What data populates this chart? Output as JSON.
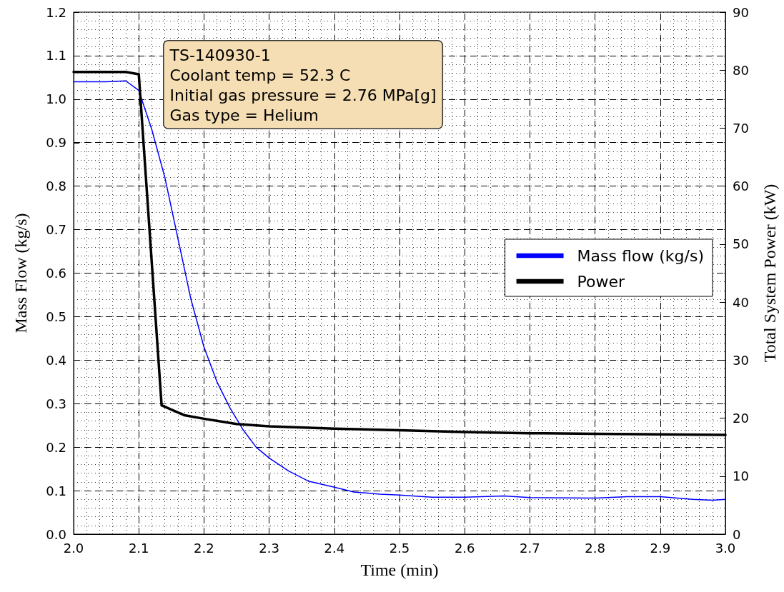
{
  "chart_data": {
    "type": "line",
    "xlabel": "Time (min)",
    "ylabel": "Mass Flow (kg/s)",
    "y2label": "Total System Power (kW)",
    "annotations": [
      "TS-140930-1",
      "Coolant temp = 52.3 C",
      "Initial gas pressure = 2.76 MPa[g]",
      "Gas type = Helium"
    ],
    "xlim": [
      2.0,
      3.0
    ],
    "xticks": [
      {
        "value": 2.0,
        "label": "2.0"
      },
      2.1,
      2.2,
      2.3,
      2.4,
      2.5,
      2.6,
      2.7,
      2.8,
      2.9,
      {
        "value": 3.0,
        "label": "3.0"
      }
    ],
    "ylim": [
      0,
      1.2
    ],
    "yticks": [
      {
        "value": 0,
        "label": "0.0"
      },
      0.1,
      0.2,
      0.3,
      0.4,
      0.5,
      0.6,
      0.7,
      0.8,
      0.9,
      {
        "value": 1.0,
        "label": "1.0"
      },
      1.1,
      1.2
    ],
    "y2lim": [
      0,
      90
    ],
    "y2ticks": [
      0,
      10,
      20,
      30,
      40,
      50,
      60,
      70,
      80,
      90
    ],
    "grid": true,
    "legend": "right",
    "marker": "none",
    "line_style": "solid",
    "series": [
      {
        "name": "Mass flow (kg/s)",
        "color": "#0000ff",
        "x": [
          2.0,
          2.05,
          2.08,
          2.1,
          2.12,
          2.14,
          2.16,
          2.18,
          2.2,
          2.22,
          2.24,
          2.26,
          2.28,
          2.3,
          2.33,
          2.36,
          2.4,
          2.43,
          2.47,
          2.5,
          2.55,
          2.6,
          2.66,
          2.7,
          2.8,
          2.85,
          2.9,
          2.95,
          2.98,
          3.0
        ],
        "values": [
          1.04,
          1.04,
          1.042,
          1.02,
          0.93,
          0.82,
          0.68,
          0.54,
          0.43,
          0.35,
          0.29,
          0.24,
          0.2,
          0.175,
          0.145,
          0.122,
          0.108,
          0.097,
          0.092,
          0.09,
          0.085,
          0.085,
          0.088,
          0.084,
          0.083,
          0.086,
          0.086,
          0.08,
          0.078,
          0.08
        ]
      },
      {
        "name": "Power",
        "color": "#000000",
        "axis": "y2",
        "x": [
          2.0,
          2.08,
          2.1,
          2.135,
          2.17,
          2.2,
          2.25,
          2.3,
          2.4,
          2.5,
          2.6,
          2.7,
          2.8,
          2.9,
          3.0
        ],
        "values": [
          79.7,
          79.7,
          79.3,
          22.2,
          20.5,
          19.9,
          19.0,
          18.6,
          18.2,
          17.9,
          17.6,
          17.4,
          17.3,
          17.2,
          17.1
        ]
      }
    ]
  }
}
